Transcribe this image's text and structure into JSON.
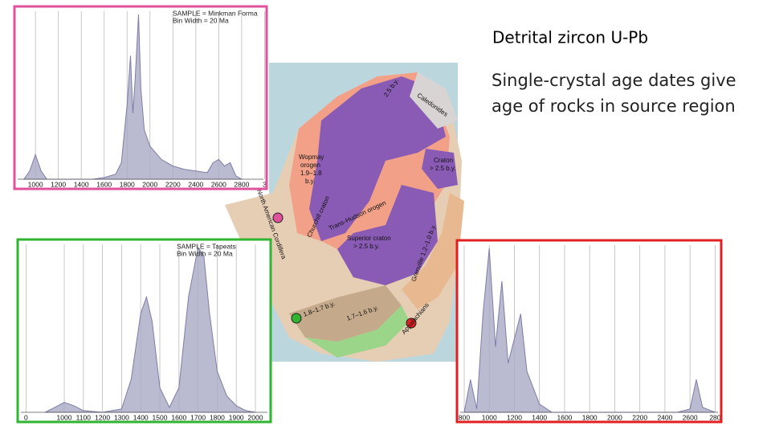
{
  "slide": {
    "title": "Detrital zircon U-Pb",
    "body": [
      "Single-crystal age dates give",
      "age of rocks in source region"
    ]
  },
  "map": {
    "labels": {
      "caledonides": "Caledonides",
      "craton": [
        "Craton",
        "> 2.5 b.y."
      ],
      "ne": "2.5 b.y.",
      "wopmay": [
        "Wopmay",
        "orogen",
        "1.9–1.8",
        "b.y."
      ],
      "churchill": "Churchill craton",
      "transhudson": "Trans-Hudson orogen",
      "cordillera": "North American Cordillera",
      "superior": [
        "Superior craton",
        "> 2.5 b.y."
      ],
      "grenville": "Grenville 1.2–1.0 b.y.",
      "b1": "1.8–1.7 b.y.",
      "b2": "1.7–1.6 b.y.",
      "appalachians": "Appalachians"
    }
  },
  "chart_data": [
    {
      "type": "area",
      "legend": [
        "SAMPLE = Minkman Forma",
        "Bin Width = 20 Ma"
      ],
      "color": "#a9a9c4",
      "line_color": "#7d7da8",
      "frame_color": "#e0529c",
      "grid": true,
      "x": [
        900,
        950,
        1000,
        1050,
        1100,
        1300,
        1500,
        1600,
        1700,
        1750,
        1800,
        1830,
        1850,
        1870,
        1900,
        1920,
        1950,
        2000,
        2100,
        2200,
        2300,
        2400,
        2500,
        2550,
        2600,
        2650,
        2700,
        2750,
        2800
      ],
      "values": [
        0,
        5,
        15,
        5,
        0,
        0,
        0,
        1,
        3,
        10,
        45,
        75,
        40,
        60,
        100,
        55,
        30,
        20,
        12,
        8,
        6,
        5,
        4,
        10,
        12,
        8,
        10,
        2,
        0
      ],
      "xlim": [
        845,
        2990
      ],
      "ylim": [
        0,
        100
      ],
      "xticks": [
        1000,
        1200,
        1400,
        1600,
        1800,
        2000,
        2200,
        2400,
        2600,
        2800,
        {
          "value": 3000,
          "label": "3"
        }
      ]
    },
    {
      "type": "area",
      "legend": [
        "SAMPLE = Tapeats",
        "Bin Width = 20 Ma"
      ],
      "color": "#a9a9c4",
      "line_color": "#7d7da8",
      "frame_color": "#2fb52f",
      "grid": true,
      "x": [
        900,
        950,
        1000,
        1050,
        1100,
        1200,
        1300,
        1350,
        1400,
        1430,
        1460,
        1500,
        1550,
        1600,
        1650,
        1700,
        1730,
        1760,
        1800,
        1850,
        1900,
        1950,
        2000
      ],
      "values": [
        0,
        3,
        6,
        4,
        1,
        0,
        2,
        20,
        60,
        70,
        55,
        15,
        3,
        15,
        70,
        100,
        95,
        60,
        25,
        10,
        4,
        1,
        0
      ],
      "xlim": [
        773,
        2063
      ],
      "ylim": [
        0,
        100
      ],
      "xticks": [
        {
          "value": 800,
          "label": "0"
        },
        1000,
        1100,
        1200,
        1300,
        1400,
        1500,
        1600,
        1700,
        1800,
        1900,
        2000
      ]
    },
    {
      "type": "area",
      "color": "#a9a9c4",
      "line_color": "#7d7da8",
      "frame_color": "#e02020",
      "grid": true,
      "x": [
        800,
        850,
        900,
        950,
        1000,
        1050,
        1100,
        1150,
        1200,
        1250,
        1300,
        1350,
        1400,
        1500,
        2500,
        2600,
        2650,
        2700,
        2800
      ],
      "values": [
        0,
        20,
        2,
        60,
        100,
        40,
        80,
        30,
        45,
        60,
        25,
        15,
        5,
        0,
        0,
        2,
        20,
        3,
        0
      ],
      "xlim": [
        768,
        2823
      ],
      "ylim": [
        0,
        100
      ],
      "xticks": [
        800,
        1000,
        1200,
        1400,
        1600,
        1800,
        2000,
        2200,
        2400,
        {
          "value": 2600,
          "label": "2600"
        },
        {
          "value": 2800,
          "label": "280"
        }
      ]
    }
  ]
}
